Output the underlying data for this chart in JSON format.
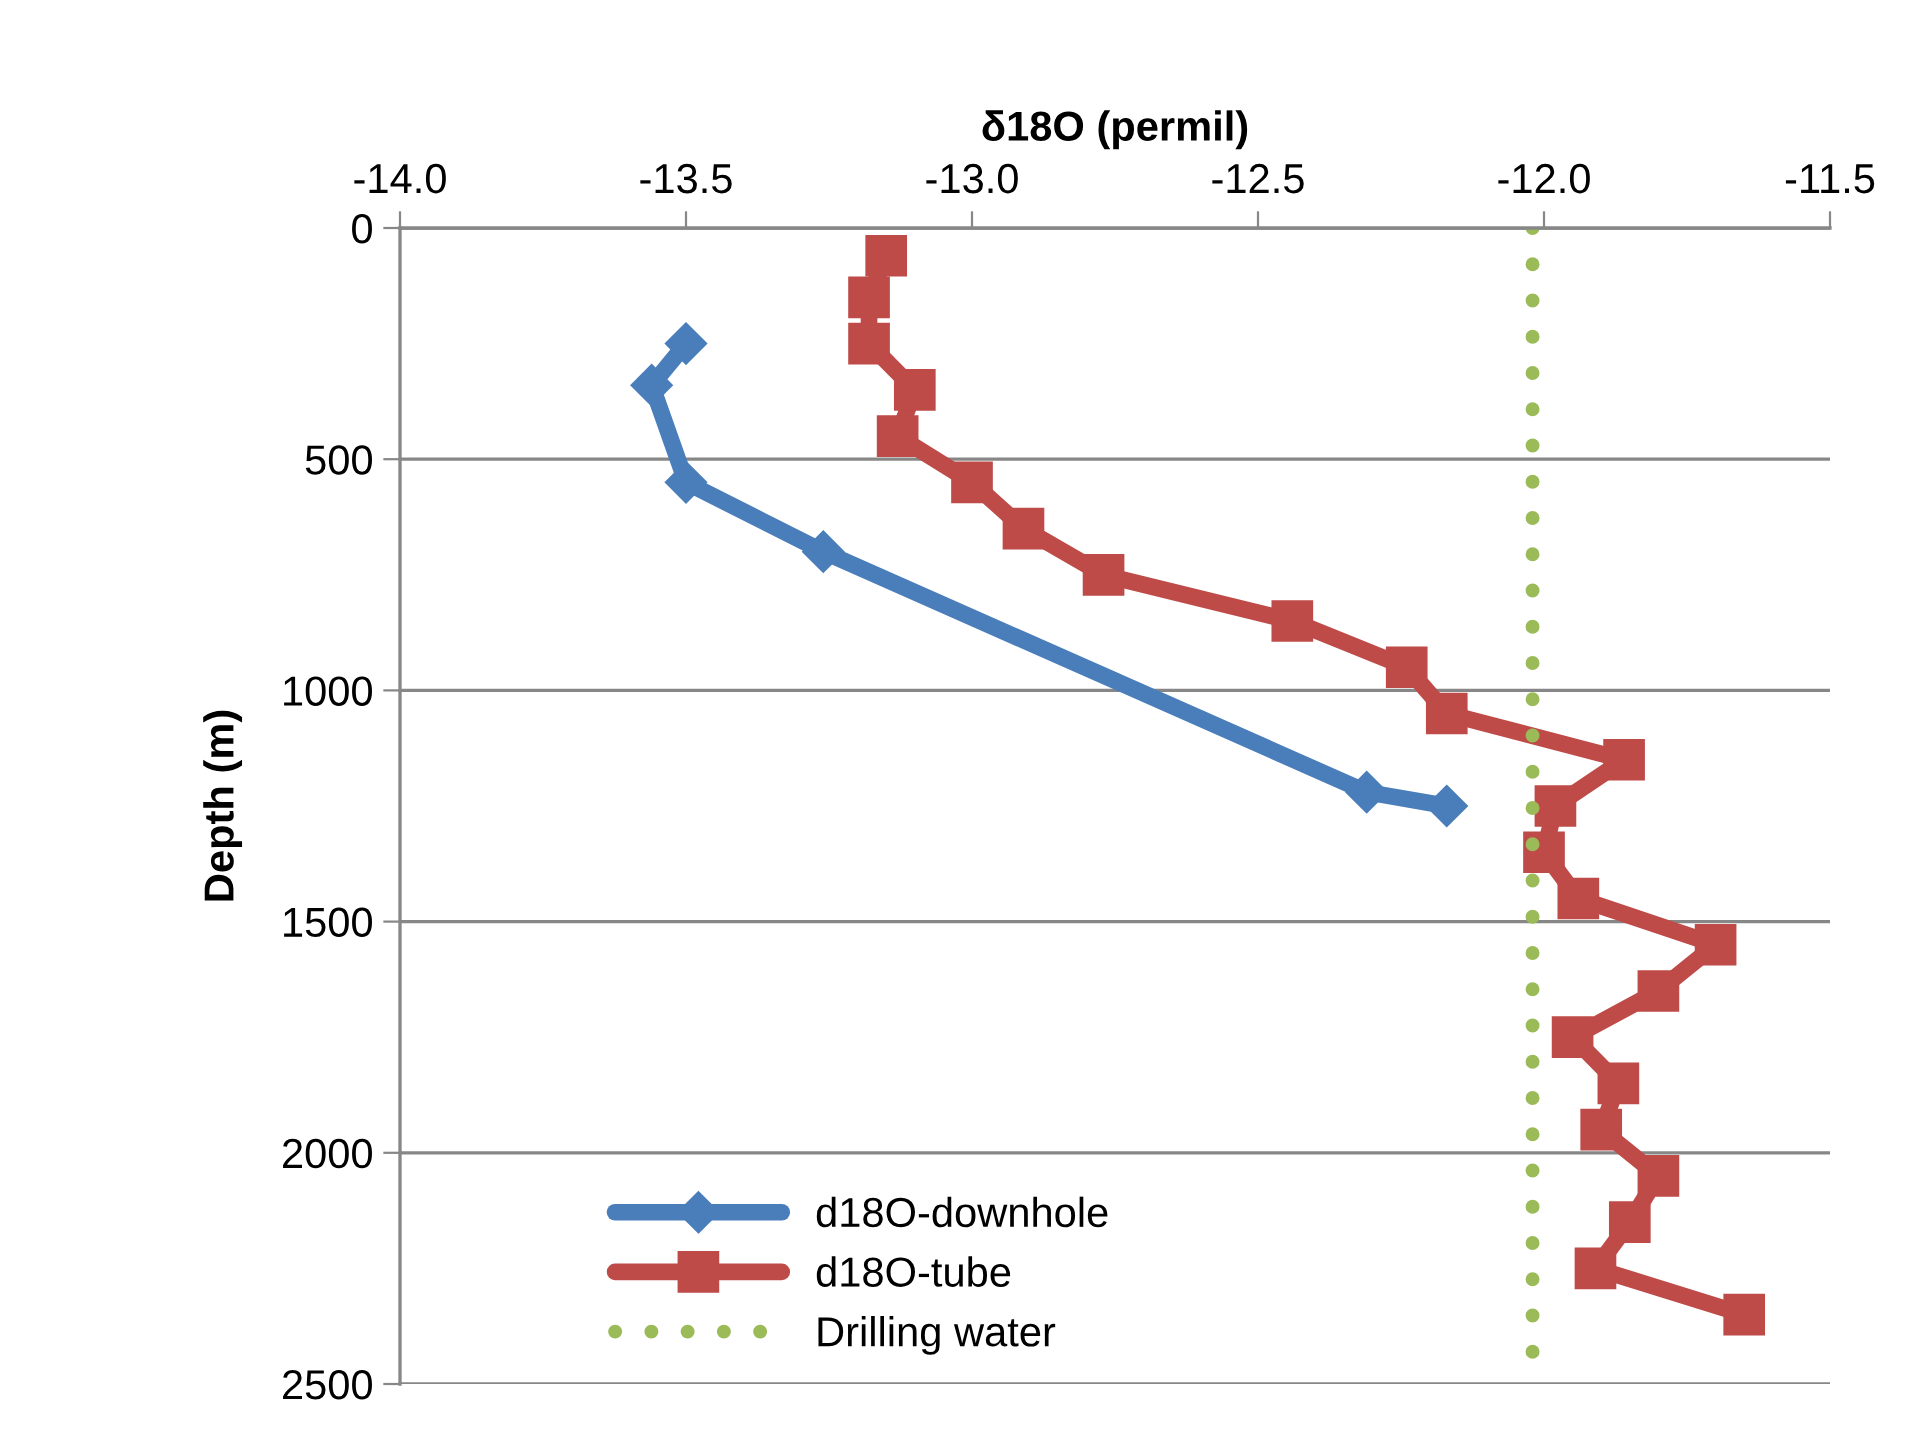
{
  "chart_data": {
    "type": "line",
    "xlabel": "δ18O (permil)",
    "ylabel": "Depth (m)",
    "xlim": [
      -14.0,
      -11.5
    ],
    "xticks": [
      {
        "value": -14.0,
        "label": "-14.0"
      },
      {
        "value": -13.5,
        "label": "-13.5"
      },
      {
        "value": -13.0,
        "label": "-13.0"
      },
      {
        "value": -12.5,
        "label": "-12.5"
      },
      {
        "value": -12.0,
        "label": "-12.0"
      },
      {
        "value": -11.5,
        "label": "-11.5"
      }
    ],
    "ylim": [
      2500,
      0
    ],
    "yticks": [
      0,
      500,
      1000,
      1500,
      2000,
      2500
    ],
    "grid": "y",
    "legend": "bottom left",
    "series": [
      {
        "name": "d18O-downhole",
        "color": "#4a7ebb",
        "marker": "diamond",
        "line_style": "solid",
        "x": [
          -13.5,
          -13.56,
          -13.5,
          -13.26,
          -12.31,
          -12.17
        ],
        "values": [
          250,
          340,
          550,
          700,
          1220,
          1250
        ]
      },
      {
        "name": "d18O-tube",
        "color": "#be4b48",
        "marker": "square",
        "line_style": "solid",
        "x": [
          -13.15,
          -13.18,
          -13.18,
          -13.1,
          -13.13,
          -13.0,
          -12.91,
          -12.77,
          -12.44,
          -12.24,
          -12.17,
          -11.86,
          -11.98,
          -12.0,
          -11.94,
          -11.7,
          -11.8,
          -11.95,
          -11.87,
          -11.9,
          -11.8,
          -11.85,
          -11.91,
          -11.65
        ],
        "values": [
          60,
          150,
          250,
          350,
          450,
          550,
          650,
          750,
          850,
          950,
          1050,
          1150,
          1250,
          1350,
          1450,
          1550,
          1650,
          1750,
          1850,
          1950,
          2050,
          2150,
          2250,
          2350
        ]
      },
      {
        "name": "Drilling water",
        "color": "#9bbb59",
        "marker": "none",
        "line_style": "dotted",
        "x": [
          -12.02,
          -12.02
        ],
        "values": [
          0,
          2500
        ]
      }
    ]
  }
}
